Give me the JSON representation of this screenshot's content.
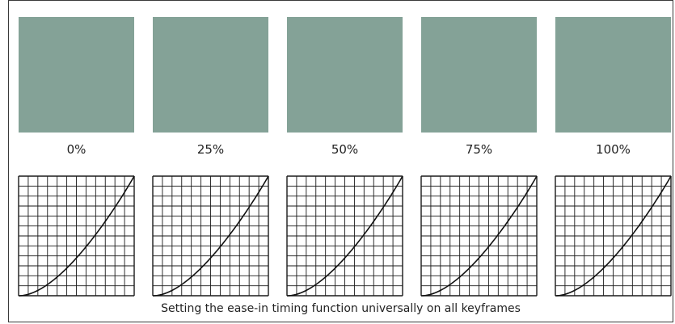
{
  "figure": {
    "caption": "Setting the ease-in timing function universally on all keyframes",
    "swatch_color": "#84a297",
    "line_color": "#111111",
    "grid_color": "#1a1a1a",
    "keyframes": [
      {
        "label": "0%",
        "value": 0
      },
      {
        "label": "25%",
        "value": 25
      },
      {
        "label": "50%",
        "value": 50
      },
      {
        "label": "75%",
        "value": 75
      },
      {
        "label": "100%",
        "value": 100
      }
    ],
    "timing_function": "ease-in"
  }
}
